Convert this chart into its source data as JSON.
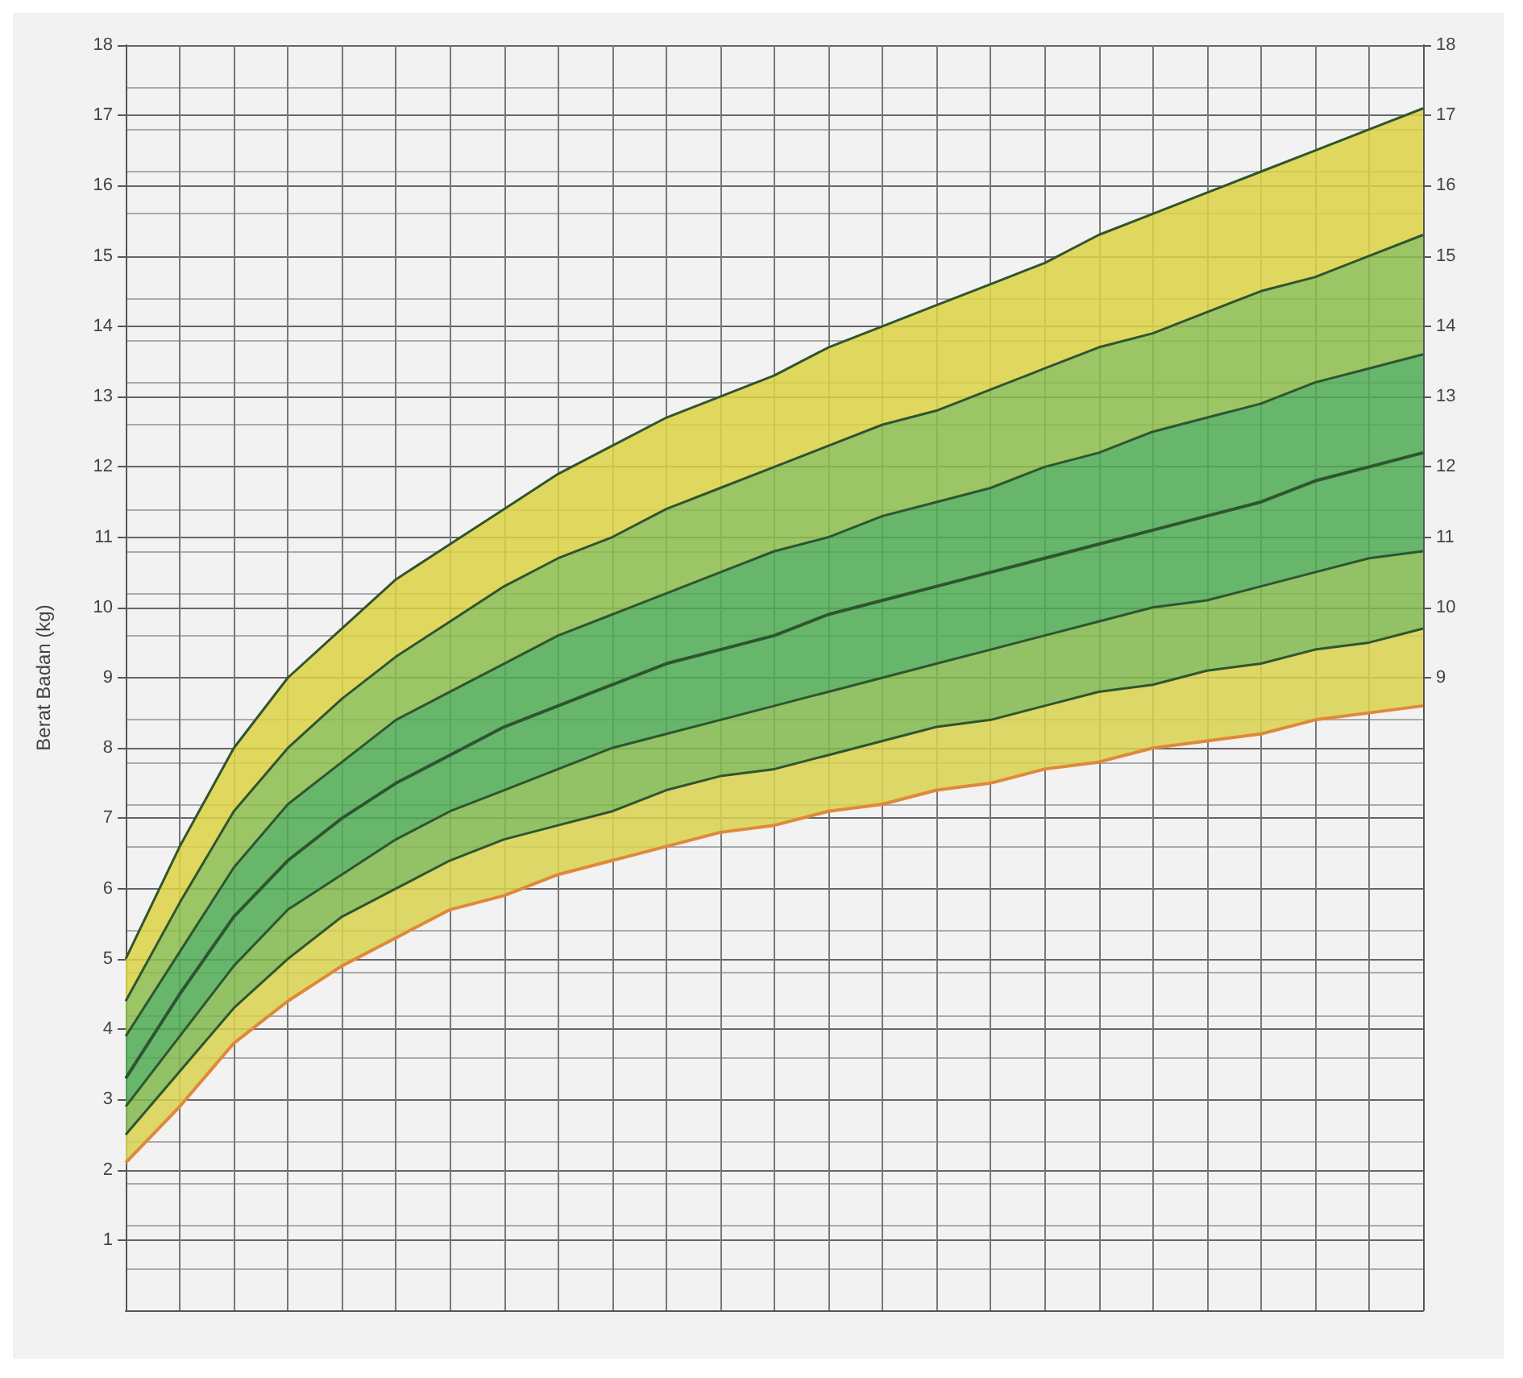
{
  "chart_data": {
    "type": "area",
    "ylabel": "Berat Badan (kg)",
    "categories": [
      null,
      null,
      null,
      null,
      null,
      null,
      null,
      null,
      null,
      null,
      null,
      null,
      null,
      null,
      null,
      null,
      null,
      null,
      null,
      null,
      null,
      null,
      null,
      null,
      null
    ],
    "series": [
      {
        "color": "#ddd444",
        "values": [
          5.0,
          6.6,
          8.0,
          9.0,
          9.7,
          10.4,
          10.9,
          11.4,
          11.9,
          12.3,
          12.7,
          13.0,
          13.3,
          13.7,
          14.0,
          14.3,
          14.6,
          14.9,
          15.3,
          15.6,
          15.9,
          16.2,
          16.5,
          16.8,
          17.1
        ]
      },
      {
        "color": "#8dbd4c",
        "values": [
          4.4,
          5.8,
          7.1,
          8.0,
          8.7,
          9.3,
          9.8,
          10.3,
          10.7,
          11.0,
          11.4,
          11.7,
          12.0,
          12.3,
          12.6,
          12.8,
          13.1,
          13.4,
          13.7,
          13.9,
          14.2,
          14.5,
          14.7,
          15.0,
          15.3
        ]
      },
      {
        "color": "#4fab55",
        "values": [
          3.9,
          5.1,
          6.3,
          7.2,
          7.8,
          8.4,
          8.8,
          9.2,
          9.6,
          9.9,
          10.2,
          10.5,
          10.8,
          11.0,
          11.3,
          11.5,
          11.7,
          12.0,
          12.2,
          12.5,
          12.7,
          12.9,
          13.2,
          13.4,
          13.6
        ]
      },
      {
        "type": "line",
        "color": "#2f5530",
        "values": [
          3.3,
          4.5,
          5.6,
          6.4,
          7.0,
          7.5,
          7.9,
          8.3,
          8.6,
          8.9,
          9.2,
          9.4,
          9.6,
          9.9,
          10.1,
          10.3,
          10.5,
          10.7,
          10.9,
          11.1,
          11.3,
          11.5,
          11.8,
          12.0,
          12.2
        ]
      },
      {
        "color": "#83b84e",
        "values": [
          2.9,
          3.9,
          4.9,
          5.7,
          6.2,
          6.7,
          7.1,
          7.4,
          7.7,
          8.0,
          8.2,
          8.4,
          8.6,
          8.8,
          9.0,
          9.2,
          9.4,
          9.6,
          9.8,
          10.0,
          10.1,
          10.3,
          10.5,
          10.7,
          10.8
        ]
      },
      {
        "color": "#d8d24e",
        "values": [
          2.5,
          3.4,
          4.3,
          5.0,
          5.6,
          6.0,
          6.4,
          6.7,
          6.9,
          7.1,
          7.4,
          7.6,
          7.7,
          7.9,
          8.1,
          8.3,
          8.4,
          8.6,
          8.8,
          8.9,
          9.1,
          9.2,
          9.4,
          9.5,
          9.7
        ]
      },
      {
        "type": "line",
        "color": "#e0883a",
        "values": [
          2.1,
          2.9,
          3.8,
          4.4,
          4.9,
          5.3,
          5.7,
          5.9,
          6.2,
          6.4,
          6.6,
          6.8,
          6.9,
          7.1,
          7.2,
          7.4,
          7.5,
          7.7,
          7.8,
          8.0,
          8.1,
          8.2,
          8.4,
          8.5,
          8.6
        ]
      }
    ],
    "ylim": [
      0,
      18
    ],
    "yticks": [
      1,
      2,
      3,
      4,
      5,
      6,
      7,
      8,
      9,
      10,
      11,
      12,
      13,
      14,
      15,
      16,
      17,
      18
    ],
    "y2lim": [
      0,
      18
    ],
    "y2ticks": [
      9,
      10,
      11,
      12,
      13,
      14,
      15,
      16,
      17,
      18
    ],
    "grid": true,
    "marker": "none",
    "line_style": "solid"
  }
}
